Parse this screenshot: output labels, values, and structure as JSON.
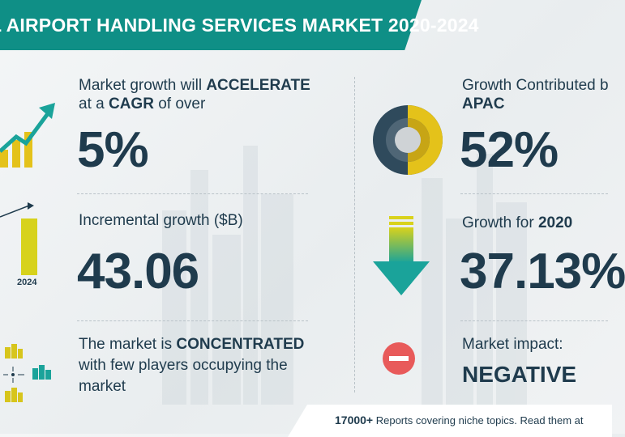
{
  "header": {
    "title": "L AIRPORT HANDLING SERVICES MARKET 2020-2024"
  },
  "colors": {
    "header_bg": "#0f8f86",
    "accent_yellow": "#e4c21a",
    "teal": "#1aa39a",
    "navy": "#1f3b4d",
    "red": "#e85a5a"
  },
  "stats": {
    "growth": {
      "line1_pre": "Market growth will ",
      "line1_bold": "ACCELERATE",
      "line2_pre": "at a ",
      "line2_bold": "CAGR",
      "line2_post": " of over",
      "value": "5%"
    },
    "incremental": {
      "label": "Incremental growth ($B)",
      "value": "43.06",
      "year": "2024"
    },
    "concentration": {
      "line1_pre": "The market is ",
      "line1_bold": "CONCENTRATED",
      "line2": "with few players occupying the",
      "line3": "market"
    },
    "apac": {
      "line1": "Growth Contributed b",
      "line2_bold": "APAC",
      "value": "52%",
      "apac_share": 52
    },
    "yoy": {
      "label_pre": "Growth for ",
      "label_bold": "2020",
      "value": "37.13%"
    },
    "impact": {
      "label": "Market impact:",
      "value": "NEGATIVE"
    }
  },
  "footer": {
    "count": "17000+",
    "text": " Reports covering niche topics. Read them at"
  },
  "icons": [
    "growth-chart-icon",
    "bar-chart-icon",
    "buildings-network-icon",
    "donut-chart-icon",
    "down-arrow-icon",
    "minus-circle-icon"
  ]
}
